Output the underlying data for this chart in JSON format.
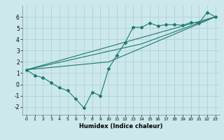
{
  "xlabel": "Humidex (Indice chaleur)",
  "ylabel": "",
  "background_color": "#cce8ec",
  "grid_color": "#aacdd4",
  "line_color": "#1a7a6e",
  "xlim": [
    -0.5,
    23.5
  ],
  "ylim": [
    -2.7,
    7.0
  ],
  "xticks": [
    0,
    1,
    2,
    3,
    4,
    5,
    6,
    7,
    8,
    9,
    10,
    11,
    12,
    13,
    14,
    15,
    16,
    17,
    18,
    19,
    20,
    21,
    22,
    23
  ],
  "yticks": [
    -2,
    -1,
    0,
    1,
    2,
    3,
    4,
    5,
    6
  ],
  "series1_x": [
    0,
    1,
    2,
    3,
    4,
    5,
    6,
    7,
    8,
    9,
    10,
    11,
    12,
    13,
    14,
    15,
    16,
    17,
    18,
    19,
    20,
    21,
    22,
    23
  ],
  "series1_y": [
    1.3,
    0.8,
    0.6,
    0.15,
    -0.3,
    -0.55,
    -1.3,
    -2.1,
    -0.7,
    -1.0,
    1.4,
    2.6,
    3.7,
    5.1,
    5.05,
    5.45,
    5.2,
    5.3,
    5.3,
    5.25,
    5.5,
    5.45,
    6.4,
    6.0
  ],
  "series2_x": [
    0,
    23
  ],
  "series2_y": [
    1.3,
    6.0
  ],
  "series3_x": [
    0,
    10,
    23
  ],
  "series3_y": [
    1.3,
    2.0,
    6.0
  ],
  "series4_x": [
    0,
    14,
    23
  ],
  "series4_y": [
    1.3,
    3.6,
    6.0
  ]
}
